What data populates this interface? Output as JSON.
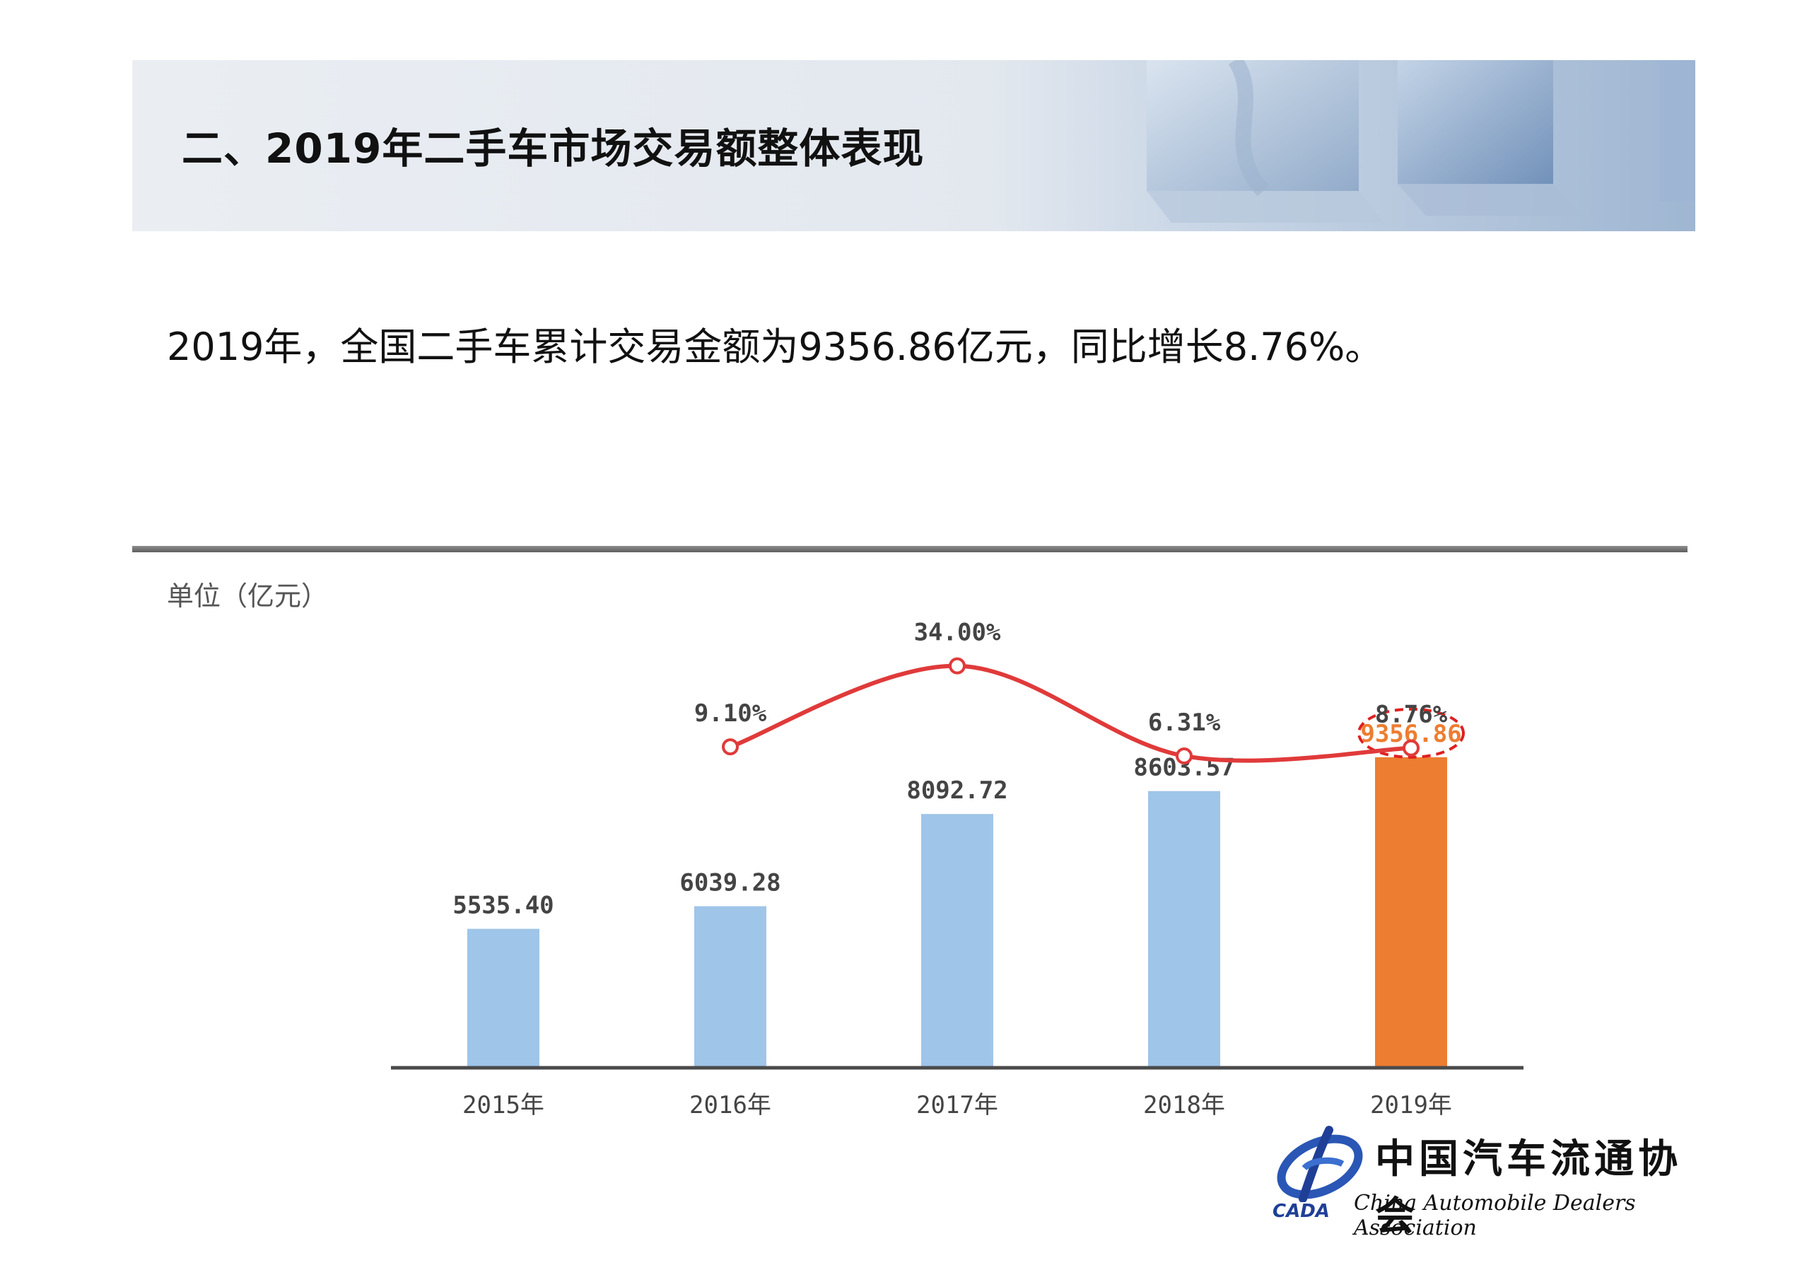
{
  "header": {
    "title": "二、2019年二手车市场交易额整体表现"
  },
  "summary": {
    "text": "2019年，全国二手车累计交易金额为9356.86亿元，同比增长8.76%。"
  },
  "unit_label": "单位（亿元）",
  "chart_data": {
    "type": "bar",
    "title": "",
    "xlabel": "",
    "ylabel": "",
    "categories": [
      "2015年",
      "2016年",
      "2017年",
      "2018年",
      "2019年"
    ],
    "series": [
      {
        "type": "bar",
        "values": [
          5535.4,
          6039.28,
          8092.72,
          8603.57,
          9356.86
        ],
        "labels": [
          "5535.40",
          "6039.28",
          "8092.72",
          "8603.57",
          "9356.86"
        ],
        "color": "#9fc5e8",
        "highlight_color": "#ed7d31",
        "highlight_index": 4
      },
      {
        "type": "line",
        "values": [
          null,
          9.1,
          34.0,
          6.31,
          8.76
        ],
        "labels": [
          "",
          "9.10%",
          "34.00%",
          "6.31%",
          "8.76%"
        ],
        "color": "#e03a3a"
      }
    ],
    "ylim": [
      0,
      10000
    ],
    "highlight_outline_color": "#e02020",
    "grid": false,
    "legend": "none"
  },
  "logo": {
    "name_cn": "中国汽车流通协会",
    "name_en": "China Automobile Dealers Association",
    "abbr": "CADA"
  },
  "colors": {
    "bar": "#9fc5e8",
    "bar_highlight": "#ed7d31",
    "line": "#e03a3a",
    "axis": "#4a4a4a",
    "label": "#444444",
    "highlight_label": "#ed7d31"
  }
}
